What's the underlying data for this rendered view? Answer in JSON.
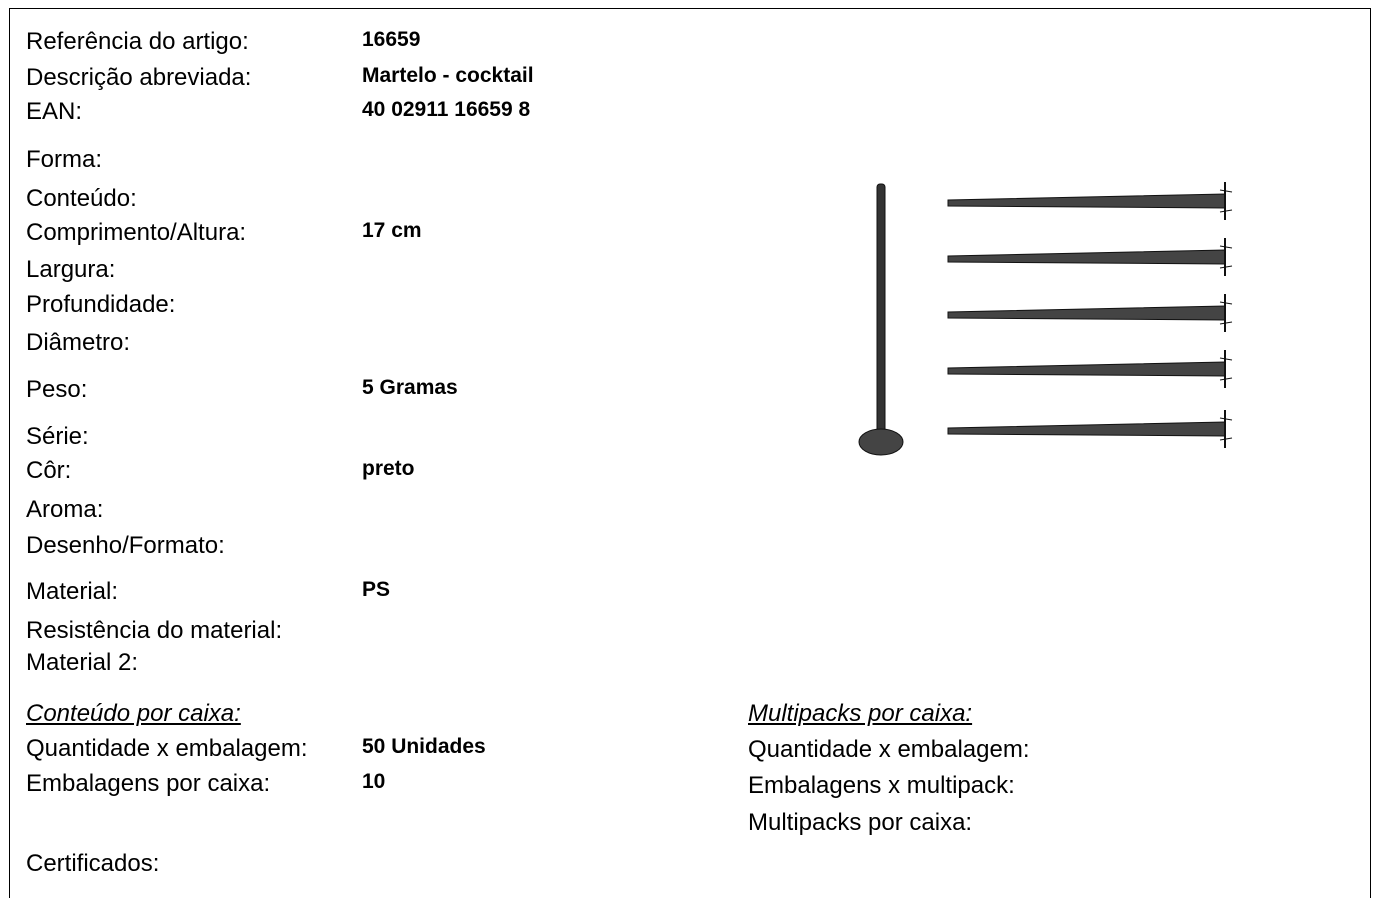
{
  "fields": [
    {
      "label": "Referência do artigo:",
      "value": "16659"
    },
    {
      "label": "Descrição abreviada:",
      "value": "Martelo - cocktail"
    },
    {
      "label": "EAN:",
      "value": "40 02911 16659 8"
    },
    {
      "label": "Forma:"
    },
    {
      "label": "Conteúdo:"
    },
    {
      "label": "Comprimento/Altura:",
      "value": "17 cm"
    },
    {
      "label": "Largura:"
    },
    {
      "label": "Profundidade:"
    },
    {
      "label": "Diâmetro:"
    },
    {
      "label": "Peso:",
      "value": "5 Gramas"
    },
    {
      "label": "Série:"
    },
    {
      "label": "Côr:",
      "value": "preto"
    },
    {
      "label": "Aroma:"
    },
    {
      "label": "Desenho/Formato:"
    },
    {
      "label": "Material:",
      "value": "PS"
    },
    {
      "label": "Resistência do material:"
    },
    {
      "label": "Material 2:"
    }
  ],
  "box_content": {
    "heading": "Conteúdo por caixa:",
    "fields": [
      {
        "label": "Quantidade x embalagem:",
        "value": "50 Unidades"
      },
      {
        "label": "Embalagens por caixa:",
        "value": "10"
      }
    ]
  },
  "multipacks": {
    "heading": "Multipacks por caixa:",
    "fields": [
      {
        "label": "Quantidade x embalagem:"
      },
      {
        "label": "Embalagens x multipack:"
      },
      {
        "label": "Multipacks por caixa:"
      }
    ]
  },
  "certificates": {
    "label": "Certificados:"
  }
}
